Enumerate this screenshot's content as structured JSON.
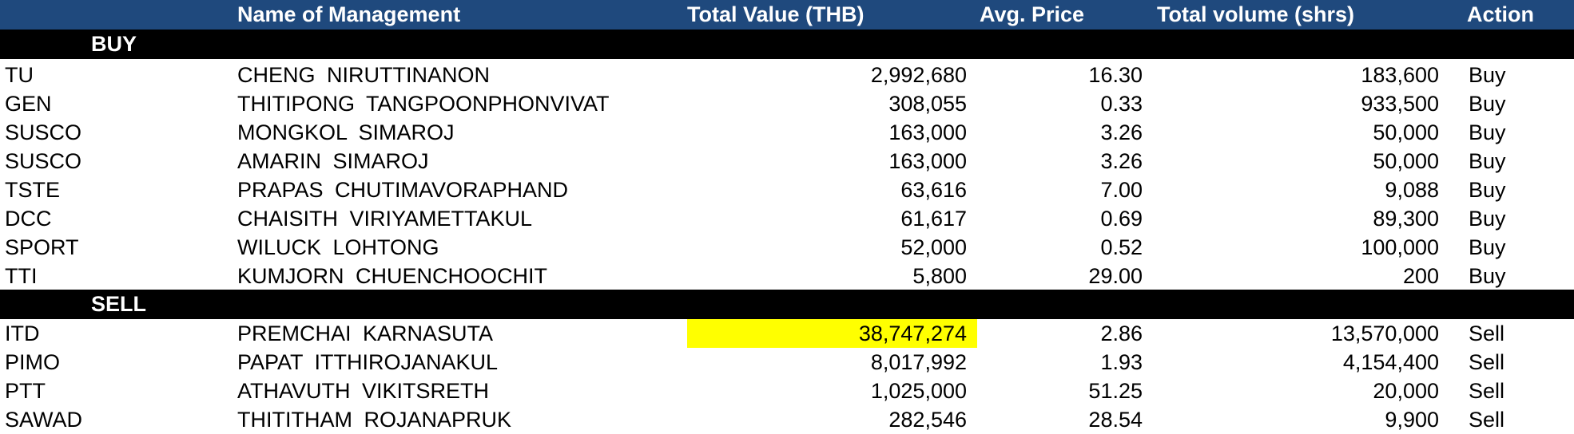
{
  "header": {
    "blank": "",
    "name": "Name of Management",
    "total_value": "Total Value (THB)",
    "avg_price": "Avg. Price",
    "total_volume": "Total volume (shrs)",
    "action": "Action"
  },
  "sections": {
    "buy_label": "BUY",
    "sell_label": "SELL"
  },
  "buy_rows": [
    {
      "symbol": "TU",
      "name": "CHENG  NIRUTTINANON",
      "value": "2,992,680",
      "avg": "16.30",
      "volume": "183,600",
      "action": "Buy"
    },
    {
      "symbol": "GEN",
      "name": "THITIPONG  TANGPOONPHONVIVAT",
      "value": "308,055",
      "avg": "0.33",
      "volume": "933,500",
      "action": "Buy"
    },
    {
      "symbol": "SUSCO",
      "name": "MONGKOL  SIMAROJ",
      "value": "163,000",
      "avg": "3.26",
      "volume": "50,000",
      "action": "Buy"
    },
    {
      "symbol": "SUSCO",
      "name": "AMARIN  SIMAROJ",
      "value": "163,000",
      "avg": "3.26",
      "volume": "50,000",
      "action": "Buy"
    },
    {
      "symbol": "TSTE",
      "name": "PRAPAS  CHUTIMAVORAPHAND",
      "value": "63,616",
      "avg": "7.00",
      "volume": "9,088",
      "action": "Buy"
    },
    {
      "symbol": "DCC",
      "name": "CHAISITH  VIRIYAMETTAKUL",
      "value": "61,617",
      "avg": "0.69",
      "volume": "89,300",
      "action": "Buy"
    },
    {
      "symbol": "SPORT",
      "name": "WILUCK  LOHTONG",
      "value": "52,000",
      "avg": "0.52",
      "volume": "100,000",
      "action": "Buy"
    },
    {
      "symbol": "TTI",
      "name": "KUMJORN  CHUENCHOOCHIT",
      "value": "5,800",
      "avg": "29.00",
      "volume": "200",
      "action": "Buy"
    }
  ],
  "sell_rows": [
    {
      "symbol": "ITD",
      "name": "PREMCHAI  KARNASUTA",
      "value": "38,747,274",
      "avg": "2.86",
      "volume": "13,570,000",
      "action": "Sell"
    },
    {
      "symbol": "PIMO",
      "name": "PAPAT  ITTHIROJANAKUL",
      "value": "8,017,992",
      "avg": "1.93",
      "volume": "4,154,400",
      "action": "Sell"
    },
    {
      "symbol": "PTT",
      "name": "ATHAVUTH  VIKITSRETH",
      "value": "1,025,000",
      "avg": "51.25",
      "volume": "20,000",
      "action": "Sell"
    },
    {
      "symbol": "SAWAD",
      "name": "THITITHAM  ROJANAPRUK",
      "value": "282,546",
      "avg": "28.54",
      "volume": "9,900",
      "action": "Sell"
    }
  ],
  "colors": {
    "header_bg": "#1f497d",
    "band_bg": "#000000",
    "highlight": "#ffff00"
  }
}
